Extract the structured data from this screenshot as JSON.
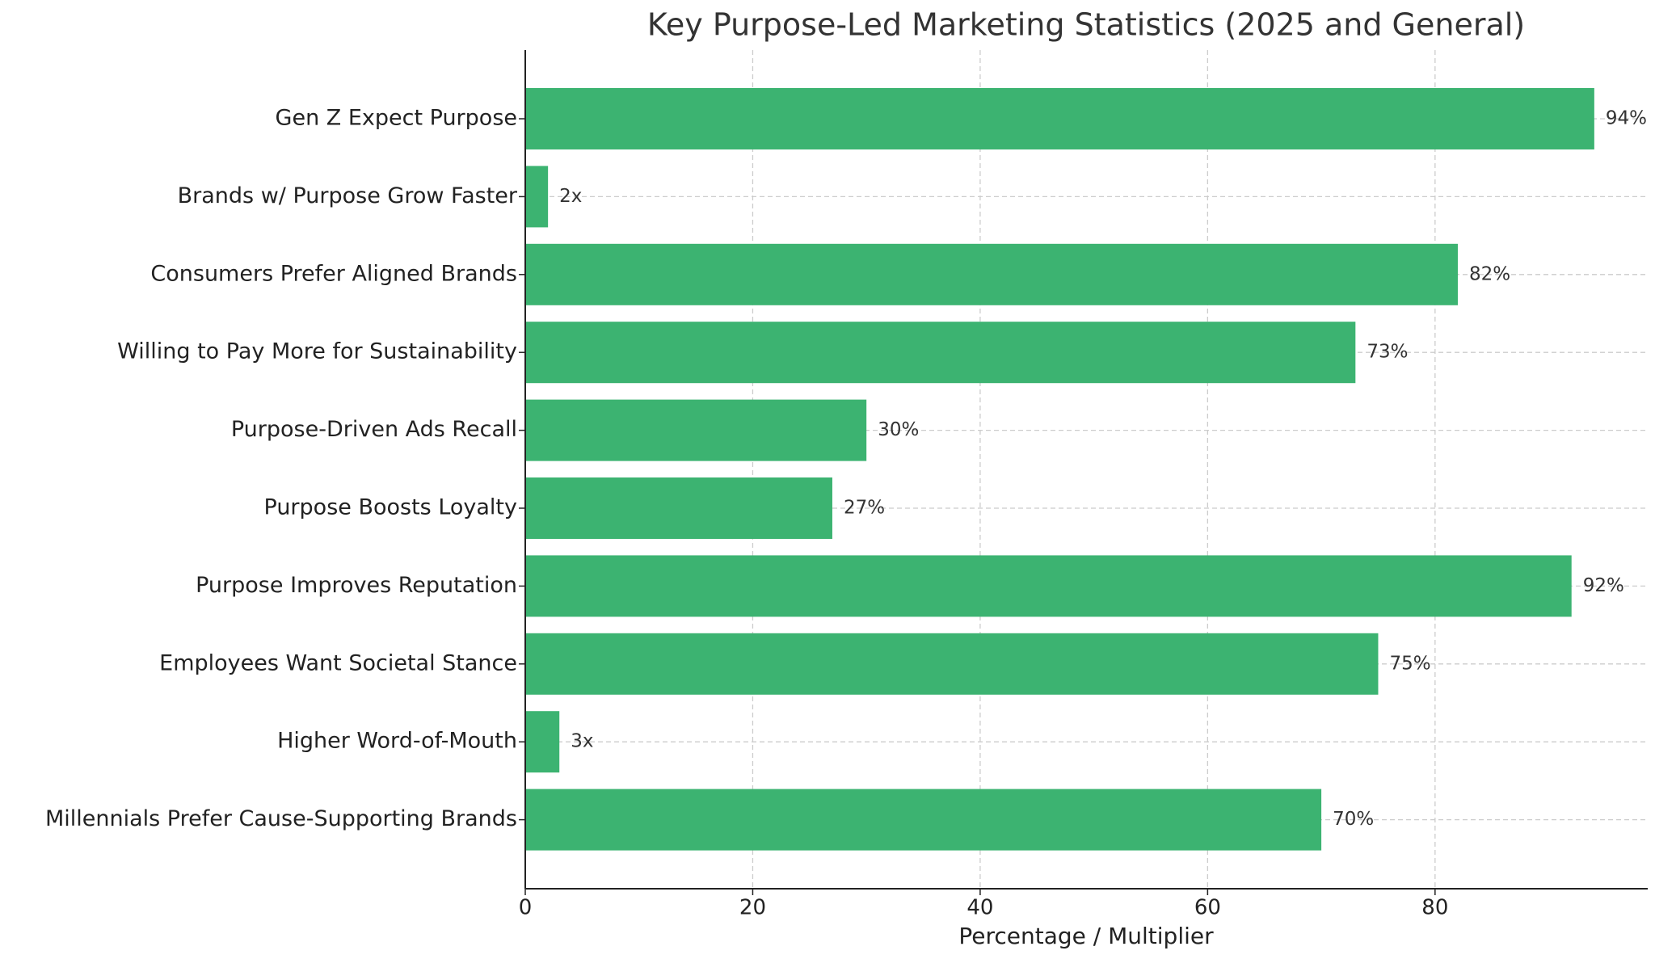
{
  "chart_data": {
    "type": "barh",
    "title": "Key Purpose-Led Marketing Statistics (2025 and General)",
    "x_label": "Percentage / Multiplier",
    "categories": [
      "Gen Z Expect Purpose",
      "Brands w/ Purpose Grow Faster",
      "Consumers Prefer Aligned Brands",
      "Willing to Pay More for Sustainability",
      "Purpose-Driven Ads Recall",
      "Purpose Boosts Loyalty",
      "Purpose Improves Reputation",
      "Employees Want Societal Stance",
      "Higher Word-of-Mouth",
      "Millennials Prefer Cause-Supporting Brands"
    ],
    "values": [
      94,
      2,
      82,
      73,
      30,
      27,
      92,
      75,
      3,
      70
    ],
    "value_labels": [
      "94%",
      "2x",
      "82%",
      "73%",
      "30%",
      "27%",
      "92%",
      "75%",
      "3x",
      "70%"
    ],
    "color": "#3cb371",
    "xlim": [
      0,
      98.7
    ],
    "xticks": [
      0,
      20,
      40,
      60,
      80
    ],
    "grid": true
  }
}
